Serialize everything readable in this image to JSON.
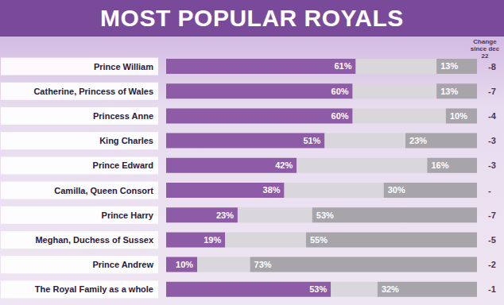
{
  "chart_data": {
    "type": "bar",
    "title": "MOST POPULAR ROYALS",
    "orientation": "horizontal",
    "stacked": true,
    "tick_labels": "y",
    "xlim": [
      0,
      100
    ],
    "categories": [
      "Prince William",
      "Catherine, Princess of Wales",
      "Princess Anne",
      "King Charles",
      "Prince Edward",
      "Camilla, Queen Consort",
      "Prince Harry",
      "Meghan, Duchess of Sussex",
      "Prince Andrew",
      "The Royal Family as a whole"
    ],
    "series": [
      {
        "color": "#8e5ba6",
        "values": [
          61,
          60,
          60,
          51,
          42,
          38,
          23,
          19,
          10,
          53
        ],
        "data_labels": true,
        "value_labels": [
          "61%",
          "60%",
          "60%",
          "51%",
          "42%",
          "38%",
          "23%",
          "19%",
          "10%",
          "53%"
        ]
      },
      {
        "color": "#d9d6dc",
        "values": [
          26,
          27,
          30,
          26,
          42,
          32,
          24,
          26,
          17,
          15
        ],
        "data_labels": false
      },
      {
        "color": "#a7a4aa",
        "values": [
          13,
          13,
          10,
          23,
          16,
          30,
          53,
          55,
          73,
          32
        ],
        "data_labels": true,
        "value_labels": [
          "13%",
          "13%",
          "10%",
          "23%",
          "16%",
          "30%",
          "53%",
          "55%",
          "73%",
          "32%"
        ]
      }
    ],
    "change_title": "Change since dec 22",
    "change_labels": [
      "-8",
      "-7",
      "-4",
      "-3",
      "-3",
      "-",
      "-7",
      "-5",
      "-2",
      "-1"
    ]
  }
}
